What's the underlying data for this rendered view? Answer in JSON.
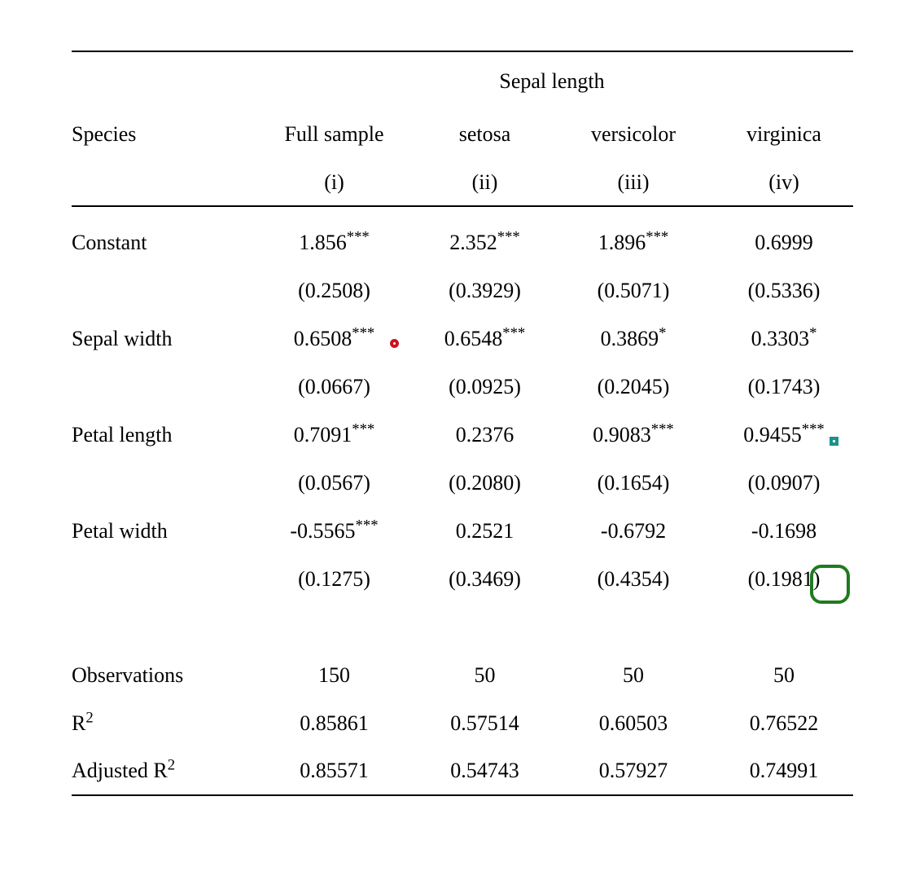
{
  "table": {
    "spanner": "Sepal length",
    "row_header_label": "Species",
    "columns": [
      {
        "label": "Full sample",
        "index": "(i)"
      },
      {
        "label": "setosa",
        "index": "(ii)"
      },
      {
        "label": "versicolor",
        "index": "(iii)"
      },
      {
        "label": "virginica",
        "index": "(iv)"
      }
    ],
    "coef_rows": [
      {
        "label": "Constant",
        "cells": [
          {
            "est": "1.856",
            "stars": "***",
            "se": "(0.2508)"
          },
          {
            "est": "2.352",
            "stars": "***",
            "se": "(0.3929)"
          },
          {
            "est": "1.896",
            "stars": "***",
            "se": "(0.5071)"
          },
          {
            "est": "0.6999",
            "stars": "",
            "se": "(0.5336)"
          }
        ]
      },
      {
        "label": "Sepal width",
        "cells": [
          {
            "est": "0.6508",
            "stars": "***",
            "se": "(0.0667)"
          },
          {
            "est": "0.6548",
            "stars": "***",
            "se": "(0.0925)"
          },
          {
            "est": "0.3869",
            "stars": "*",
            "se": "(0.2045)"
          },
          {
            "est": "0.3303",
            "stars": "*",
            "se": "(0.1743)"
          }
        ]
      },
      {
        "label": "Petal length",
        "cells": [
          {
            "est": "0.7091",
            "stars": "***",
            "se": "(0.0567)"
          },
          {
            "est": "0.2376",
            "stars": "",
            "se": "(0.2080)"
          },
          {
            "est": "0.9083",
            "stars": "***",
            "se": "(0.1654)"
          },
          {
            "est": "0.9455",
            "stars": "***",
            "se": "(0.0907)"
          }
        ]
      },
      {
        "label": "Petal width",
        "cells": [
          {
            "est": "-0.5565",
            "stars": "***",
            "se": "(0.1275)"
          },
          {
            "est": "0.2521",
            "stars": "",
            "se": "(0.3469)"
          },
          {
            "est": "-0.6792",
            "stars": "",
            "se": "(0.4354)"
          },
          {
            "est": "-0.1698",
            "stars": "",
            "se": "(0.1981)"
          }
        ]
      }
    ],
    "stat_rows": [
      {
        "label": "Observations",
        "label_sup": "",
        "values": [
          "150",
          "50",
          "50",
          "50"
        ]
      },
      {
        "label": "R",
        "label_sup": "2",
        "values": [
          "0.85861",
          "0.57514",
          "0.60503",
          "0.76522"
        ]
      },
      {
        "label": "Adjusted R",
        "label_sup": "2",
        "values": [
          "0.85571",
          "0.54743",
          "0.57927",
          "0.74991"
        ]
      }
    ]
  },
  "annotations": {
    "red_circle_color": "#cf1020",
    "teal_square_color": "#17938b",
    "green_rect_color": "#1f7a1f"
  }
}
